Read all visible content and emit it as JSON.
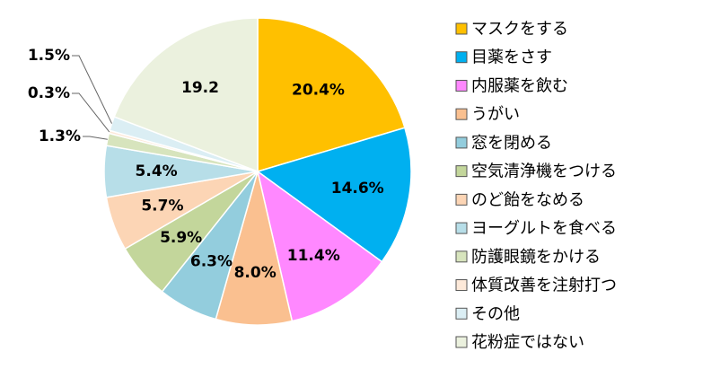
{
  "chart_data": {
    "type": "pie",
    "categories": [
      "マスクをする",
      "目薬をさす",
      "内服薬を飲む",
      "うがい",
      "窓を閉める",
      "空気清浄機をつける",
      "のど飴をなめる",
      "ヨーグルトを食べる",
      "防護眼鏡をかける",
      "体質改善を注射打つ",
      "その他",
      "花粉症ではない"
    ],
    "values": [
      20.4,
      14.6,
      11.4,
      8.0,
      6.3,
      5.9,
      5.7,
      5.4,
      1.3,
      0.3,
      1.5,
      19.2
    ],
    "value_labels": [
      "20.4%",
      "14.6%",
      "11.4%",
      "8.0%",
      "6.3%",
      "5.9%",
      "5.7%",
      "5.4%",
      "1.3%",
      "0.3%",
      "1.5%",
      "19.2"
    ],
    "colors": [
      "#FFC000",
      "#00B0F0",
      "#FF88FF",
      "#FAC090",
      "#93CDDD",
      "#C3D69B",
      "#FCD5B5",
      "#B7DEE8",
      "#D7E4BD",
      "#FDE9D9",
      "#DBEEF4",
      "#EBF1DE"
    ],
    "legend": "right"
  }
}
